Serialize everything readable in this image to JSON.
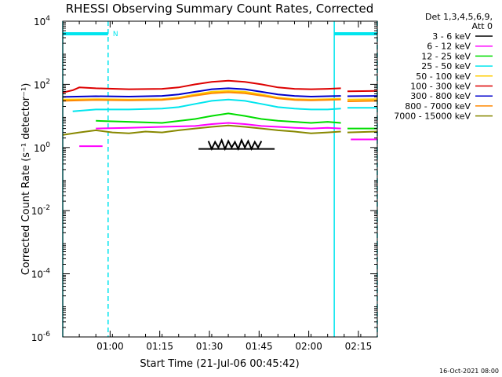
{
  "chart_data": {
    "type": "line",
    "title": "RHESSI Observing Summary Count Rates, Corrected",
    "xlabel": "Start Time (21-Jul-06 00:45:42)",
    "ylabel": "Corrected Count Rate (s⁻¹ detector⁻¹)",
    "yscale": "log",
    "ylim": [
      1e-06,
      10000.0
    ],
    "xlim_minutes_from_start": [
      0,
      95
    ],
    "x_ticks": [
      {
        "label": "01:00",
        "minutes": 14.3
      },
      {
        "label": "01:15",
        "minutes": 29.3
      },
      {
        "label": "01:30",
        "minutes": 44.3
      },
      {
        "label": "01:45",
        "minutes": 59.3
      },
      {
        "label": "02:00",
        "minutes": 74.3
      },
      {
        "label": "02:15",
        "minutes": 89.3
      }
    ],
    "y_ticks": [
      {
        "base": "10",
        "exp": "4",
        "value": 10000
      },
      {
        "base": "10",
        "exp": "2",
        "value": 100
      },
      {
        "base": "10",
        "exp": "0",
        "value": 1
      },
      {
        "base": "10",
        "exp": "-2",
        "value": 0.01
      },
      {
        "base": "10",
        "exp": "-4",
        "value": 0.0001
      },
      {
        "base": "10",
        "exp": "-6",
        "value": 1e-06
      }
    ],
    "legend_header": [
      "Det 1,3,4,5,6,9,",
      "Att 0"
    ],
    "night_marker": "N",
    "flag_lines": [
      {
        "minutes": 0.0,
        "style": "solid",
        "color": "#00e5ee"
      },
      {
        "minutes": 13.7,
        "style": "dashed",
        "color": "#00e5ee"
      },
      {
        "minutes": 82.0,
        "style": "solid",
        "color": "#00e5ee"
      },
      {
        "minutes": 95.0,
        "style": "dashed",
        "color": "#00e5ee"
      }
    ],
    "flag_bars": [
      {
        "start": 0.0,
        "end": 13.7,
        "level": 4000
      },
      {
        "start": 82.0,
        "end": 95.0,
        "level": 4000
      }
    ],
    "series": [
      {
        "name": "3 - 6 keV",
        "color": "#000000",
        "segments": [
          {
            "x": [
              44,
              45,
              46,
              47,
              48,
              49,
              50,
              51,
              52,
              53,
              54,
              55,
              56,
              57,
              58,
              59,
              60
            ],
            "y": [
              1.6,
              0.9,
              1.5,
              1.0,
              1.7,
              0.9,
              1.6,
              1.0,
              1.5,
              0.9,
              1.7,
              1.0,
              1.6,
              0.9,
              1.5,
              1.0,
              1.6
            ]
          },
          {
            "x": [
              41,
              64
            ],
            "y": [
              0.9,
              0.9
            ]
          }
        ]
      },
      {
        "name": "6 - 12 keV",
        "color": "#ff00ff",
        "segments": [
          {
            "x": [
              10,
              20,
              30,
              40,
              45,
              50,
              55,
              60,
              65,
              70,
              75,
              80,
              84
            ],
            "y": [
              4.0,
              4.2,
              4.5,
              4.8,
              5.5,
              6.0,
              5.5,
              4.8,
              4.5,
              4.2,
              4.0,
              4.2,
              4.0
            ]
          },
          {
            "x": [
              5,
              12
            ],
            "y": [
              1.1,
              1.1
            ]
          },
          {
            "x": [
              87,
              95
            ],
            "y": [
              1.8,
              1.8
            ]
          }
        ]
      },
      {
        "name": "12 - 25 keV",
        "color": "#00dd00",
        "segments": [
          {
            "x": [
              10,
              20,
              30,
              40,
              45,
              50,
              55,
              60,
              65,
              70,
              75,
              80,
              84
            ],
            "y": [
              7.0,
              6.5,
              6.0,
              8.0,
              10.0,
              12.0,
              10.0,
              8.0,
              7.0,
              6.5,
              6.0,
              6.5,
              6.0
            ]
          },
          {
            "x": [
              86,
              95
            ],
            "y": [
              4.0,
              4.0
            ]
          }
        ]
      },
      {
        "name": "25 - 50 keV",
        "color": "#00e5ee",
        "segments": [
          {
            "x": [
              3,
              10,
              20,
              30,
              35,
              40,
              45,
              50,
              55,
              60,
              65,
              70,
              75,
              80,
              84
            ],
            "y": [
              14,
              16,
              16,
              17,
              19,
              24,
              30,
              33,
              30,
              24,
              19,
              17,
              16,
              16,
              17
            ]
          },
          {
            "x": [
              86,
              95
            ],
            "y": [
              18,
              18
            ]
          }
        ]
      },
      {
        "name": "50 - 100 keV",
        "color": "#ffcc00",
        "segments": [
          {
            "x": [
              0,
              10,
              20,
              30,
              35,
              40,
              45,
              50,
              55,
              60,
              65,
              70,
              75,
              80,
              84
            ],
            "y": [
              33,
              34,
              33,
              34,
              38,
              48,
              58,
              62,
              58,
              48,
              38,
              34,
              33,
              34,
              35
            ]
          },
          {
            "x": [
              86,
              95
            ],
            "y": [
              33,
              34
            ]
          }
        ]
      },
      {
        "name": "100 - 300 keV",
        "color": "#dd0000",
        "segments": [
          {
            "x": [
              0,
              3,
              5,
              10,
              20,
              30,
              35,
              40,
              45,
              50,
              55,
              60,
              65,
              70,
              75,
              80,
              84
            ],
            "y": [
              55,
              65,
              80,
              75,
              70,
              72,
              80,
              100,
              120,
              130,
              120,
              100,
              80,
              72,
              70,
              72,
              75
            ]
          },
          {
            "x": [
              86,
              95
            ],
            "y": [
              60,
              62
            ]
          }
        ]
      },
      {
        "name": "300 - 800 keV",
        "color": "#0000cc",
        "segments": [
          {
            "x": [
              0,
              10,
              20,
              30,
              35,
              40,
              45,
              50,
              55,
              60,
              65,
              70,
              75,
              80,
              84
            ],
            "y": [
              40,
              42,
              41,
              43,
              48,
              58,
              70,
              75,
              70,
              58,
              48,
              43,
              41,
              42,
              43
            ]
          },
          {
            "x": [
              86,
              95
            ],
            "y": [
              42,
              43
            ]
          }
        ]
      },
      {
        "name": "800 - 7000 keV",
        "color": "#ff8800",
        "segments": [
          {
            "x": [
              0,
              10,
              20,
              30,
              35,
              40,
              45,
              50,
              55,
              60,
              65,
              70,
              75,
              80,
              84
            ],
            "y": [
              30,
              32,
              31,
              32,
              36,
              44,
              52,
              56,
              52,
              44,
              36,
              32,
              31,
              32,
              33
            ]
          },
          {
            "x": [
              86,
              95
            ],
            "y": [
              29,
              30
            ]
          }
        ]
      },
      {
        "name": "7000 - 15000 keV",
        "color": "#888800",
        "segments": [
          {
            "x": [
              0,
              5,
              10,
              15,
              20,
              25,
              30,
              35,
              40,
              45,
              50,
              55,
              60,
              65,
              70,
              75,
              80,
              84
            ],
            "y": [
              2.5,
              3.0,
              3.5,
              3.0,
              2.8,
              3.2,
              3.0,
              3.5,
              4.0,
              4.5,
              5.0,
              4.5,
              4.0,
              3.5,
              3.2,
              2.8,
              3.0,
              3.2
            ]
          },
          {
            "x": [
              86,
              95
            ],
            "y": [
              3.0,
              3.2
            ]
          }
        ]
      }
    ]
  },
  "footer": {
    "timestamp": "16-Oct-2021 08:00"
  }
}
